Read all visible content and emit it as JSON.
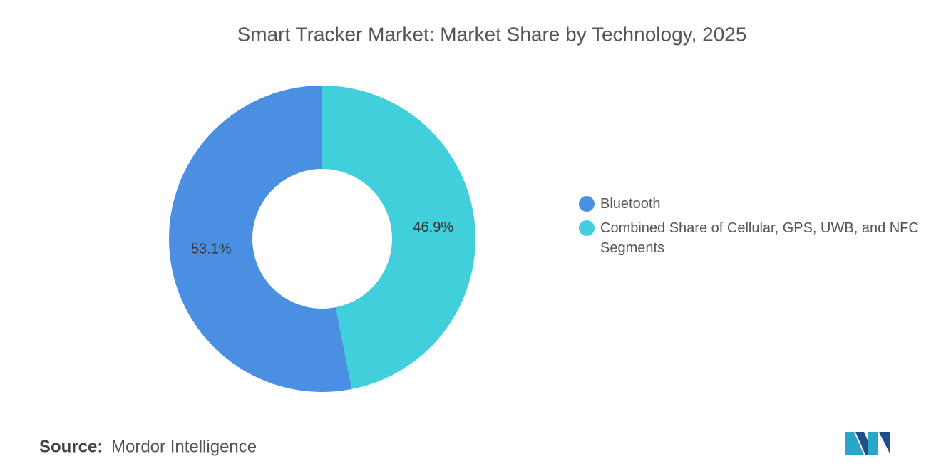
{
  "chart_data": {
    "type": "donut",
    "title": "Smart Tracker Market: Market Share by Technology, 2025",
    "categories": [
      "Bluetooth",
      "Combined Share of Cellular, GPS, UWB, and NFC Segments"
    ],
    "values": [
      53.1,
      46.9
    ],
    "value_labels": [
      "53.1%",
      "46.9%"
    ],
    "colors": [
      "#4a8fe2",
      "#41d0db"
    ]
  },
  "source": {
    "label": "Source:",
    "text": "Mordor Intelligence"
  }
}
